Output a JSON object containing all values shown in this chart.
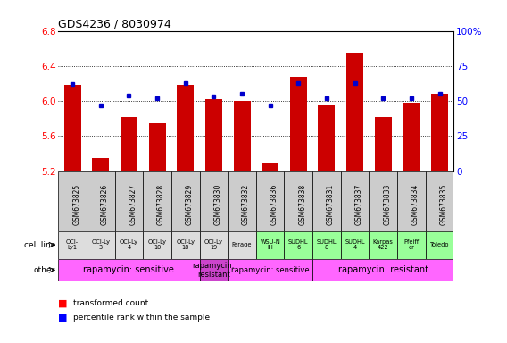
{
  "title": "GDS4236 / 8030974",
  "samples": [
    "GSM673825",
    "GSM673826",
    "GSM673827",
    "GSM673828",
    "GSM673829",
    "GSM673830",
    "GSM673832",
    "GSM673836",
    "GSM673838",
    "GSM673831",
    "GSM673837",
    "GSM673833",
    "GSM673834",
    "GSM673835"
  ],
  "bar_values": [
    6.18,
    5.35,
    5.82,
    5.75,
    6.18,
    6.02,
    6.0,
    5.3,
    6.28,
    5.95,
    6.55,
    5.82,
    5.98,
    6.08
  ],
  "dot_values": [
    62,
    47,
    54,
    52,
    63,
    53,
    55,
    47,
    63,
    52,
    63,
    52,
    52,
    55
  ],
  "ymin": 5.2,
  "ymax": 6.8,
  "yticks": [
    5.2,
    5.6,
    6.0,
    6.4,
    6.8
  ],
  "y2min": 0,
  "y2max": 100,
  "y2ticks": [
    0,
    25,
    50,
    75,
    100
  ],
  "cell_line_labels": [
    "OCI-\nLy1",
    "OCI-Ly\n3",
    "OCI-Ly\n4",
    "OCI-Ly\n10",
    "OCI-Ly\n18",
    "OCI-Ly\n19",
    "Farage",
    "WSU-N\nIH",
    "SUDHL\n6",
    "SUDHL\n8",
    "SUDHL\n4",
    "Karpas\n422",
    "Pfeiff\ner",
    "Toledo"
  ],
  "cell_line_bg": [
    "#dddddd",
    "#dddddd",
    "#dddddd",
    "#dddddd",
    "#dddddd",
    "#dddddd",
    "#dddddd",
    "#99ff99",
    "#99ff99",
    "#99ff99",
    "#99ff99",
    "#99ff99",
    "#99ff99",
    "#99ff99"
  ],
  "other_regions": [
    {
      "start": 0,
      "end": 5,
      "color": "#ff66ff",
      "label": "rapamycin: sensitive",
      "fontsize": 7
    },
    {
      "start": 5,
      "end": 6,
      "color": "#cc44cc",
      "label": "rapamycin:\nresistant",
      "fontsize": 6
    },
    {
      "start": 6,
      "end": 9,
      "color": "#ff66ff",
      "label": "rapamycin: sensitive",
      "fontsize": 6
    },
    {
      "start": 9,
      "end": 14,
      "color": "#ff66ff",
      "label": "rapamycin: resistant",
      "fontsize": 7
    }
  ],
  "bar_color": "#cc0000",
  "dot_color": "#0000cc",
  "bg_gray": "#cccccc"
}
